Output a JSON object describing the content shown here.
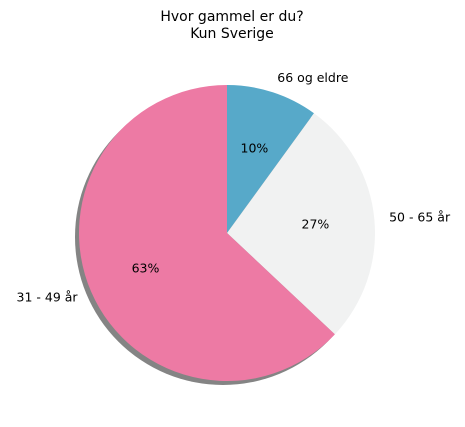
{
  "chart_data": {
    "type": "pie",
    "title": "Hvor gammel er du?",
    "subtitle": "Kun Sverige",
    "slices": [
      {
        "label": "66 og eldre",
        "value": 10,
        "pct_label": "10%",
        "color": "#57a9c9"
      },
      {
        "label": "50 - 65 år",
        "value": 27,
        "pct_label": "27%",
        "color": "#f1f2f2"
      },
      {
        "label": "31 - 49 år",
        "value": 63,
        "pct_label": "63%",
        "color": "#ed7aa4"
      }
    ],
    "start_angle_deg": 90,
    "direction": "clockwise",
    "shadow": true
  }
}
